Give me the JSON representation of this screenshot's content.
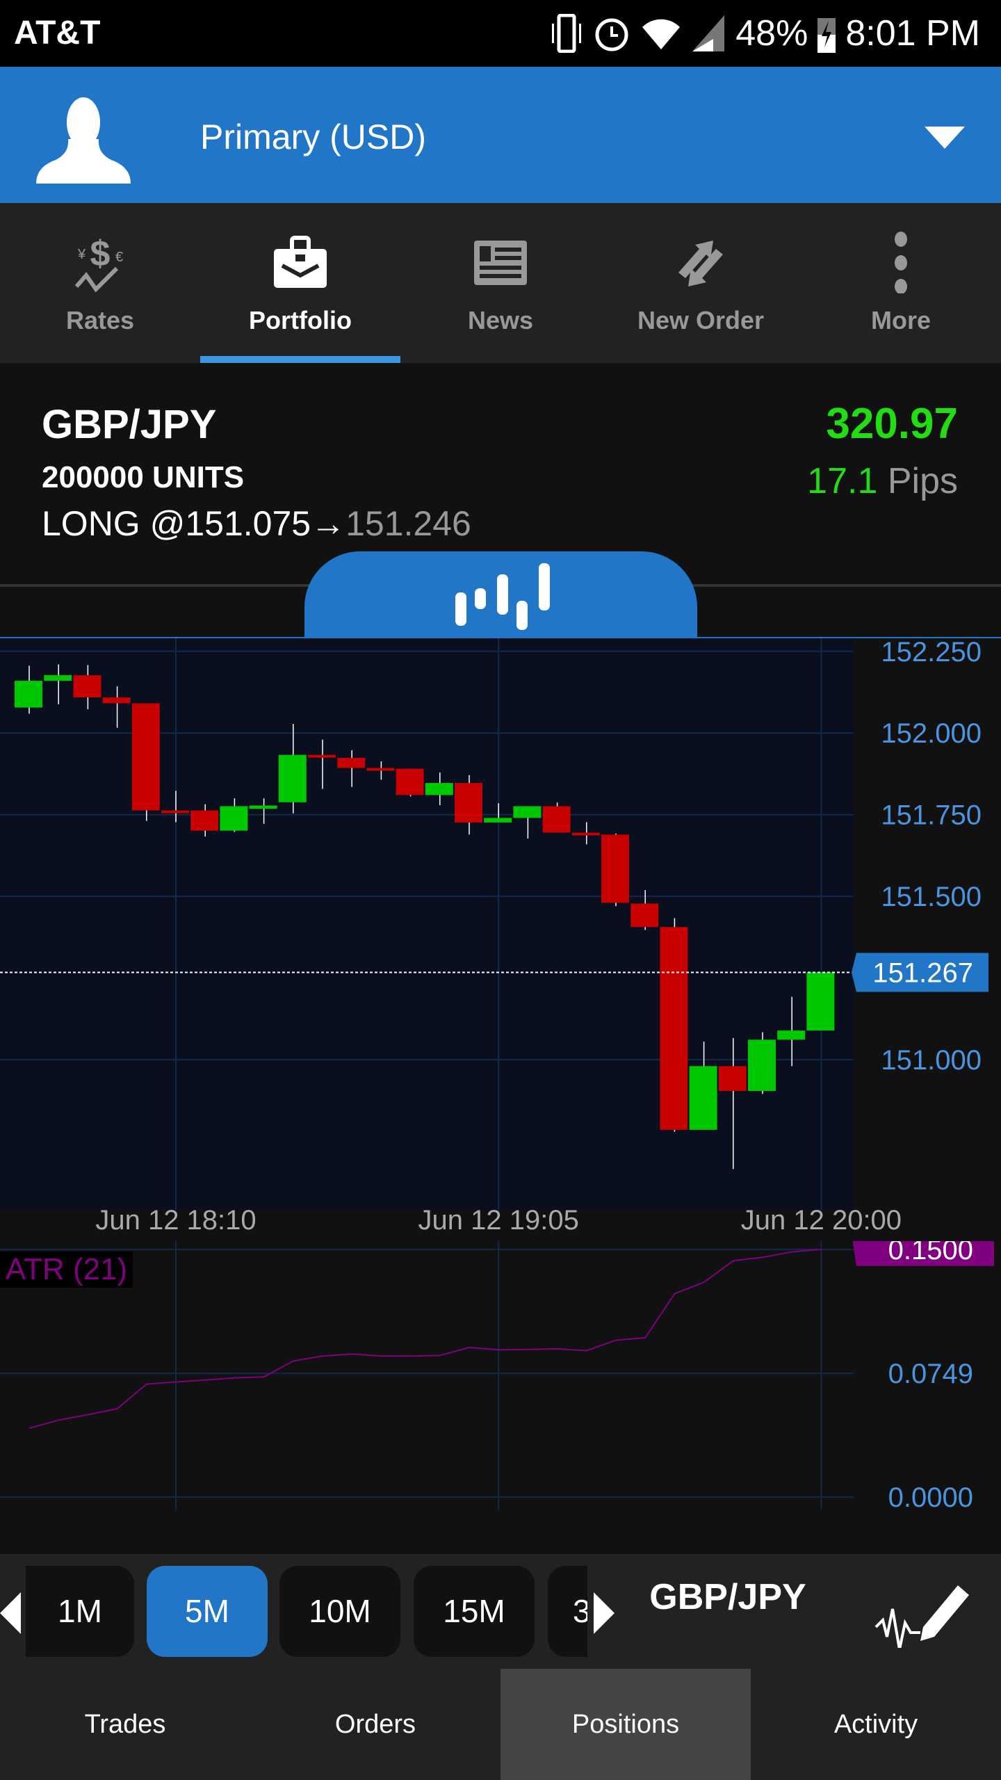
{
  "status_bar": {
    "carrier": "AT&T",
    "battery": "48%",
    "time": "8:01 PM"
  },
  "header": {
    "account": "Primary (USD)"
  },
  "nav": {
    "items": [
      {
        "label": "Rates",
        "icon": "rates-icon"
      },
      {
        "label": "Portfolio",
        "icon": "briefcase-icon",
        "active": true
      },
      {
        "label": "News",
        "icon": "newspaper-icon"
      },
      {
        "label": "New Order",
        "icon": "new-order-icon"
      },
      {
        "label": "More",
        "icon": "more-vertical-icon"
      }
    ]
  },
  "position": {
    "instrument": "GBP/JPY",
    "units": "200000 UNITS",
    "side_entry": "LONG @151.075",
    "arrow": "→",
    "current": "151.246",
    "pl": "320.97",
    "pips_value": "17.1",
    "pips_label": "Pips"
  },
  "colors": {
    "accent": "#2176c7",
    "up": "#00c800",
    "down": "#c80000",
    "profit": "#22dd11",
    "atr": "#800080"
  },
  "chart_data": [
    {
      "type": "candlestick",
      "interval": "5M",
      "ylim": [
        150.54,
        152.29
      ],
      "y_ticks": [
        "152.250",
        "152.000",
        "151.750",
        "151.500",
        "151.000"
      ],
      "x_ticks": [
        "Jun 12 18:10",
        "Jun 12 19:05",
        "Jun 12 20:00"
      ],
      "current_price": "151.267",
      "candles": [
        [
          152.078,
          152.206,
          152.059,
          152.16
        ],
        [
          152.16,
          152.21,
          152.088,
          152.177
        ],
        [
          152.177,
          152.208,
          152.073,
          152.109
        ],
        [
          152.109,
          152.143,
          152.016,
          152.091
        ],
        [
          152.091,
          152.091,
          151.731,
          151.763
        ],
        [
          151.763,
          151.823,
          151.727,
          151.76
        ],
        [
          151.763,
          151.782,
          151.683,
          151.701
        ],
        [
          151.701,
          151.8,
          151.697,
          151.776
        ],
        [
          151.768,
          151.8,
          151.722,
          151.778
        ],
        [
          151.788,
          152.028,
          151.754,
          151.933
        ],
        [
          151.933,
          151.98,
          151.829,
          151.926
        ],
        [
          151.924,
          151.947,
          151.835,
          151.893
        ],
        [
          151.893,
          151.913,
          151.857,
          151.889
        ],
        [
          151.891,
          151.891,
          151.806,
          151.81
        ],
        [
          151.81,
          151.879,
          151.779,
          151.847
        ],
        [
          151.847,
          151.871,
          151.689,
          151.726
        ],
        [
          151.726,
          151.785,
          151.726,
          151.74
        ],
        [
          151.74,
          151.776,
          151.677,
          151.776
        ],
        [
          151.776,
          151.787,
          151.695,
          151.695
        ],
        [
          151.695,
          151.727,
          151.659,
          151.69
        ],
        [
          151.689,
          151.692,
          151.47,
          151.48
        ],
        [
          151.478,
          151.519,
          151.397,
          151.406
        ],
        [
          151.406,
          151.433,
          150.779,
          150.785
        ],
        [
          150.785,
          151.055,
          150.785,
          150.98
        ],
        [
          150.98,
          151.066,
          150.665,
          150.904
        ],
        [
          150.904,
          151.084,
          150.895,
          151.061
        ],
        [
          151.061,
          151.192,
          150.98,
          151.089
        ],
        [
          151.089,
          151.267,
          151.089,
          151.267
        ]
      ]
    },
    {
      "type": "line",
      "title": "ATR (21)",
      "ylim": [
        -0.0345,
        0.155
      ],
      "y_ticks": [
        "0.1500",
        "0.0749",
        "0.0000"
      ],
      "current_value": "0.1500",
      "values": [
        0.0417,
        0.0466,
        0.0499,
        0.0535,
        0.0684,
        0.0697,
        0.0709,
        0.0722,
        0.0728,
        0.0824,
        0.0854,
        0.0866,
        0.0854,
        0.0854,
        0.0858,
        0.0906,
        0.0892,
        0.0894,
        0.0898,
        0.0887,
        0.095,
        0.0965,
        0.1231,
        0.1301,
        0.1431,
        0.1452,
        0.1485,
        0.15
      ]
    }
  ],
  "timeframes": {
    "items": [
      "1M",
      "5M",
      "10M",
      "15M",
      "3"
    ],
    "selected": "5M",
    "instrument": "GBP/JPY"
  },
  "bottom_tabs": {
    "items": [
      "Trades",
      "Orders",
      "Positions",
      "Activity"
    ],
    "selected": "Positions"
  }
}
